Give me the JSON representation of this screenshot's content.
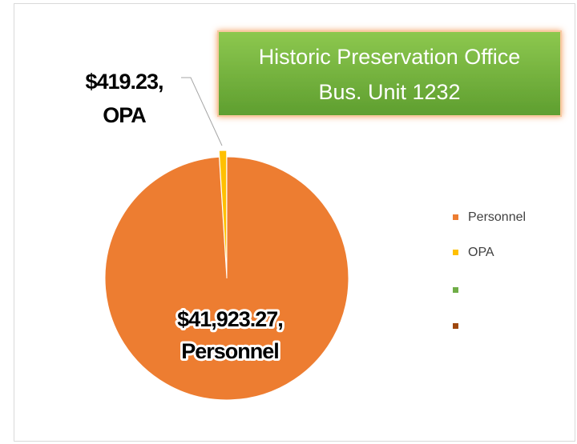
{
  "chart_data": {
    "type": "pie",
    "title": [
      "Historic Preservation Office",
      "Bus. Unit 1232"
    ],
    "categories": [
      "Personnel",
      "OPA",
      null,
      null
    ],
    "values": [
      41923.27,
      419.23,
      0,
      0
    ],
    "value_labels": [
      "$41,923.27,",
      "$419.23,",
      null,
      null
    ],
    "colors": [
      "#ed7d31",
      "#ffc000",
      "#70ad47",
      "#9e480e"
    ],
    "legend": "right"
  }
}
